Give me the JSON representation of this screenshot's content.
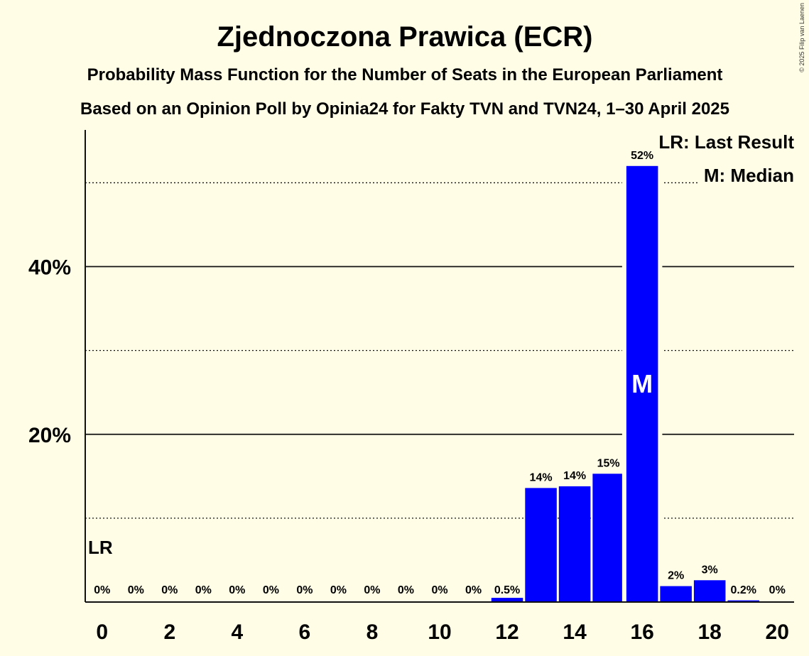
{
  "chart_data": {
    "type": "bar",
    "title": "Zjednoczona Prawica (ECR)",
    "subtitle": "Probability Mass Function for the Number of Seats in the European Parliament",
    "subtitle2": "Based on an Opinion Poll by Opinia24 for Fakty TVN and TVN24, 1–30 April 2025",
    "copyright": "© 2025 Filip van Laenen",
    "x": [
      0,
      1,
      2,
      3,
      4,
      5,
      6,
      7,
      8,
      9,
      10,
      11,
      12,
      13,
      14,
      15,
      16,
      17,
      18,
      19,
      20
    ],
    "values": [
      0,
      0,
      0,
      0,
      0,
      0,
      0,
      0,
      0,
      0,
      0,
      0,
      0.5,
      13.6,
      13.8,
      15.3,
      52,
      1.9,
      2.6,
      0.2,
      0
    ],
    "value_labels": [
      "0%",
      "0%",
      "0%",
      "0%",
      "0%",
      "0%",
      "0%",
      "0%",
      "0%",
      "0%",
      "0%",
      "0%",
      "0.5%",
      "14%",
      "14%",
      "15%",
      "52%",
      "2%",
      "3%",
      "0.2%",
      "0%"
    ],
    "x_tick_values": [
      0,
      2,
      4,
      6,
      8,
      10,
      12,
      14,
      16,
      18,
      20
    ],
    "x_tick_labels": [
      "0",
      "2",
      "4",
      "6",
      "8",
      "10",
      "12",
      "14",
      "16",
      "18",
      "20"
    ],
    "y_tick_values": [
      20,
      40
    ],
    "y_tick_labels": [
      "20%",
      "40%"
    ],
    "y_major_gridlines": [
      20,
      40
    ],
    "y_minor_gridlines": [
      10,
      30,
      50
    ],
    "ylim": [
      0,
      56.3
    ],
    "xlabel": "",
    "ylabel": "",
    "last_result": {
      "seat": 0,
      "label": "LR"
    },
    "median": {
      "seat": 16,
      "label": "M"
    },
    "legend": [
      "LR: Last Result",
      "M: Median"
    ],
    "legend_position": "top-right",
    "bar_color": "#0000ff",
    "background_color": "#fffde6"
  }
}
